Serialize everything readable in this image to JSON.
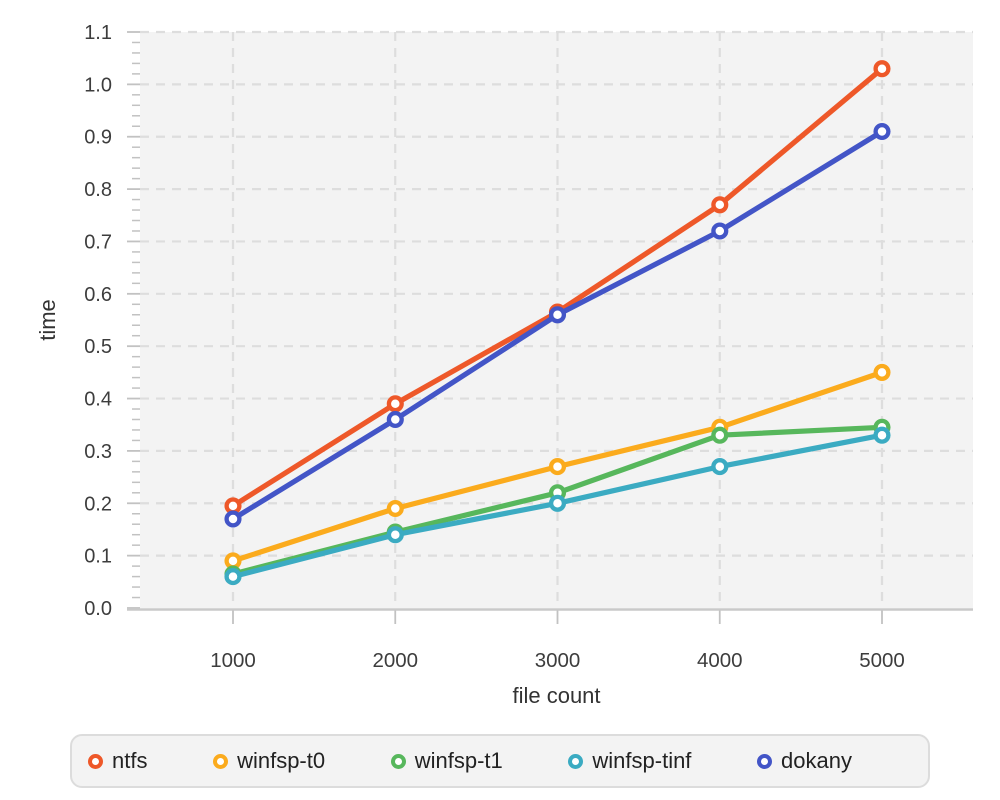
{
  "chart_data": {
    "type": "line",
    "title": "",
    "xlabel": "file count",
    "ylabel": "time",
    "x": [
      1000,
      2000,
      3000,
      4000,
      5000
    ],
    "x_tick_labels": [
      "1000",
      "2000",
      "3000",
      "4000",
      "5000"
    ],
    "y_tick_labels": [
      "0.0",
      "0.1",
      "0.2",
      "0.3",
      "0.4",
      "0.5",
      "0.6",
      "0.7",
      "0.8",
      "0.9",
      "1.0",
      "1.1"
    ],
    "ylim": [
      0,
      1.1
    ],
    "y_major_step": 0.1,
    "y_minor_step": 0.02,
    "grid": true,
    "grid_style": "dashed",
    "legend_position": "bottom",
    "marker": "open-circle",
    "series": [
      {
        "name": "ntfs",
        "color": "#ee5829",
        "values": [
          0.195,
          0.39,
          0.565,
          0.77,
          1.03
        ]
      },
      {
        "name": "winfsp-t0",
        "color": "#fbab1d",
        "values": [
          0.09,
          0.19,
          0.27,
          0.345,
          0.45
        ]
      },
      {
        "name": "winfsp-t1",
        "color": "#57b75c",
        "values": [
          0.065,
          0.145,
          0.22,
          0.33,
          0.345
        ]
      },
      {
        "name": "winfsp-tinf",
        "color": "#3babc2",
        "values": [
          0.06,
          0.14,
          0.2,
          0.27,
          0.33
        ]
      },
      {
        "name": "dokany",
        "color": "#4355c7",
        "values": [
          0.17,
          0.36,
          0.56,
          0.72,
          0.91
        ]
      }
    ],
    "colors": {
      "plot_background": "#f3f3f3",
      "gridline": "#dddddd",
      "axis_line": "#c9c9c9",
      "tick": "#c2c2c2",
      "tick_label": "#3d3d3d",
      "axis_title": "#333333",
      "legend_background": "#f3f3f3",
      "legend_border": "#dcdcdc",
      "legend_text": "#222222"
    }
  }
}
